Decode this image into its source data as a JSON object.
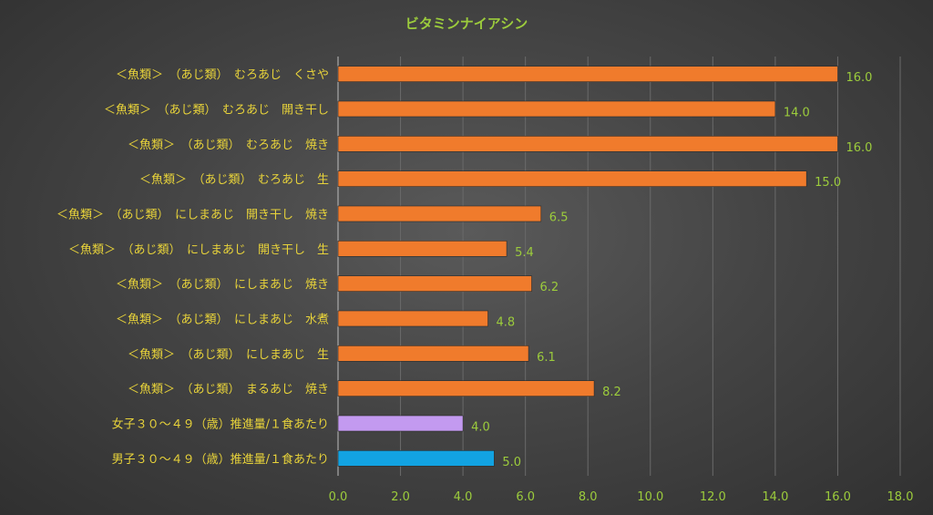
{
  "chart_data": {
    "type": "bar",
    "orientation": "horizontal",
    "title": "ビタミンナイアシン",
    "xlim": [
      0,
      18
    ],
    "xticks": [
      "0.0",
      "2.0",
      "4.0",
      "6.0",
      "8.0",
      "10.0",
      "12.0",
      "14.0",
      "16.0",
      "18.0"
    ],
    "grid": true,
    "categories": [
      "＜魚類＞　（あじ類）　むろあじ　くさや",
      "＜魚類＞　（あじ類）　むろあじ　開き干し",
      "＜魚類＞　（あじ類）　むろあじ　焼き",
      "＜魚類＞　（あじ類）　むろあじ　生",
      "＜魚類＞　（あじ類）　にしまあじ　開き干し　焼き",
      "＜魚類＞　（あじ類）　にしまあじ　開き干し　生",
      "＜魚類＞　（あじ類）　にしまあじ　焼き",
      "＜魚類＞　（あじ類）　にしまあじ　水煮",
      "＜魚類＞　（あじ類）　にしまあじ　生",
      "＜魚類＞　（あじ類）　まるあじ　焼き",
      "女子３０～４９（歳）推進量/１食あたり",
      "男子３０～４９（歳）推進量/１食あたり"
    ],
    "values": [
      16.0,
      14.0,
      16.0,
      15.0,
      6.5,
      5.4,
      6.2,
      4.8,
      6.1,
      8.2,
      4.0,
      5.0
    ],
    "value_labels": [
      "16.0",
      "14.0",
      "16.0",
      "15.0",
      "6.5",
      "5.4",
      "6.2",
      "4.8",
      "6.1",
      "8.2",
      "4.0",
      "5.0"
    ],
    "colors": [
      "#f07b2c",
      "#f07b2c",
      "#f07b2c",
      "#f07b2c",
      "#f07b2c",
      "#f07b2c",
      "#f07b2c",
      "#f07b2c",
      "#f07b2c",
      "#f07b2c",
      "#c39af0",
      "#12a3e2"
    ]
  }
}
